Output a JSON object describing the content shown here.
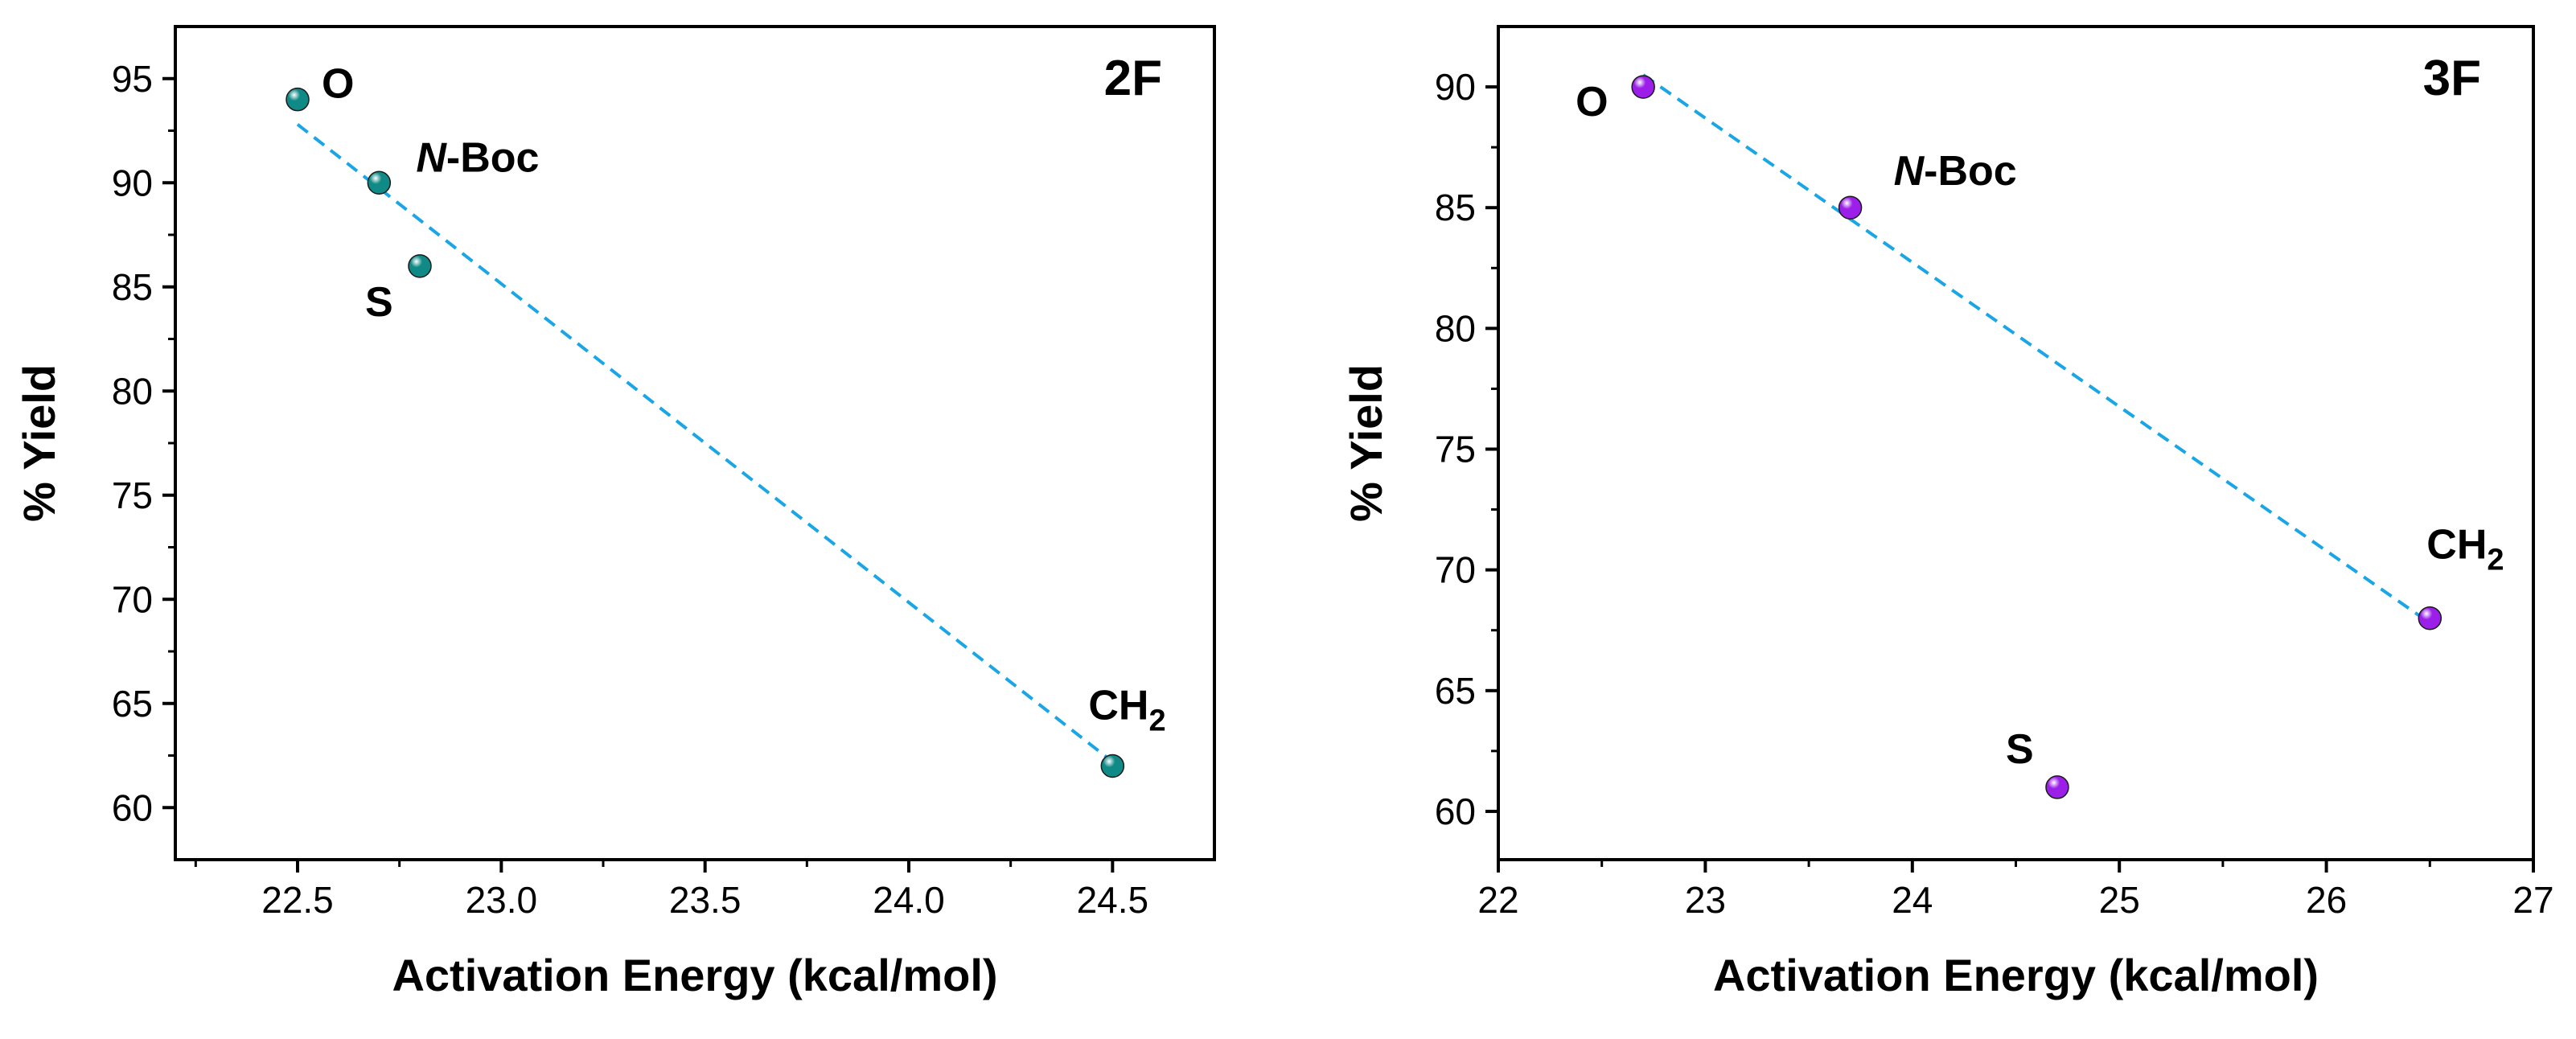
{
  "chart_data": [
    {
      "type": "scatter",
      "panel_label": "2F",
      "xlabel": "Activation Energy (kcal/mol)",
      "ylabel": "% Yield",
      "xlim": [
        22.2,
        24.75
      ],
      "ylim": [
        57.5,
        97.5
      ],
      "xticks": [
        22.5,
        23.0,
        23.5,
        24.0,
        24.5
      ],
      "xtick_labels": [
        "22.5",
        "23.0",
        "23.5",
        "24.0",
        "24.5"
      ],
      "yticks": [
        60,
        65,
        70,
        75,
        80,
        85,
        90,
        95
      ],
      "ytick_labels": [
        "60",
        "65",
        "70",
        "75",
        "80",
        "85",
        "90",
        "95"
      ],
      "grid": false,
      "marker_color": "#0f8a86",
      "fit_color": "#1aa6e6",
      "fit_line": {
        "x": [
          22.5,
          24.5
        ],
        "y": [
          92.8,
          62.2
        ]
      },
      "points": [
        {
          "label": "O",
          "x": 22.5,
          "y": 94,
          "label_italic": "",
          "label_sub": ""
        },
        {
          "label": "-Boc",
          "x": 22.7,
          "y": 90,
          "label_italic": "N",
          "label_sub": ""
        },
        {
          "label": "S",
          "x": 22.8,
          "y": 86,
          "label_italic": "",
          "label_sub": ""
        },
        {
          "label": "CH",
          "x": 24.5,
          "y": 62,
          "label_italic": "",
          "label_sub": "2"
        }
      ]
    },
    {
      "type": "scatter",
      "panel_label": "3F",
      "xlabel": "Activation Energy (kcal/mol)",
      "ylabel": "% Yield",
      "xlim": [
        22,
        27
      ],
      "ylim": [
        58,
        92.5
      ],
      "xticks": [
        22,
        23,
        24,
        25,
        26,
        27
      ],
      "xtick_labels": [
        "22",
        "23",
        "24",
        "25",
        "26",
        "27"
      ],
      "yticks": [
        60,
        65,
        70,
        75,
        80,
        85,
        90
      ],
      "ytick_labels": [
        "60",
        "65",
        "70",
        "75",
        "80",
        "85",
        "90"
      ],
      "grid": false,
      "marker_color": "#9b1fe8",
      "fit_color": "#1aa6e6",
      "fit_line": {
        "x": [
          22.7,
          26.5
        ],
        "y": [
          90.5,
          67.8
        ]
      },
      "points": [
        {
          "label": "O",
          "x": 22.7,
          "y": 90,
          "label_italic": "",
          "label_sub": ""
        },
        {
          "label": "-Boc",
          "x": 23.7,
          "y": 85,
          "label_italic": "N",
          "label_sub": ""
        },
        {
          "label": "CH",
          "x": 26.5,
          "y": 68,
          "label_italic": "",
          "label_sub": "2"
        },
        {
          "label": "S",
          "x": 24.7,
          "y": 61,
          "label_italic": "",
          "label_sub": ""
        }
      ]
    }
  ]
}
